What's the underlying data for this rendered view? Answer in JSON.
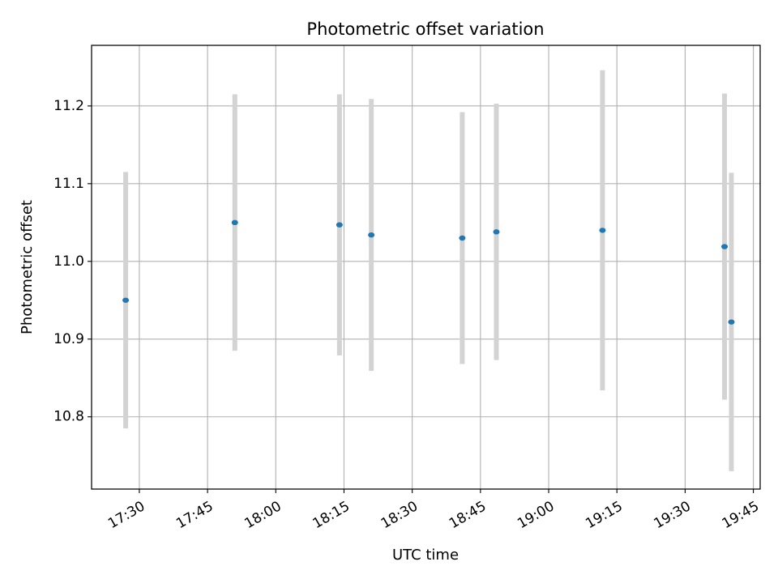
{
  "chart_data": {
    "type": "scatter",
    "title": "Photometric offset variation",
    "xlabel": "UTC time",
    "ylabel": "Photometric offset",
    "grid": true,
    "xlim": [
      "17:19:30",
      "19:46:30"
    ],
    "ylim": [
      10.707,
      11.278
    ],
    "x_ticks": [
      "17:30",
      "17:45",
      "18:00",
      "18:15",
      "18:30",
      "18:45",
      "19:00",
      "19:15",
      "19:30",
      "19:45"
    ],
    "y_ticks": [
      10.8,
      10.9,
      11.0,
      11.1,
      11.2
    ],
    "y_tick_labels": [
      "10.8",
      "10.9",
      "11.0",
      "11.1",
      "11.2"
    ],
    "marker_color": "#1f77b4",
    "errorbar_color": "#d3d3d3",
    "points": [
      {
        "x": "17:27:00",
        "y": 10.95,
        "err": 0.165
      },
      {
        "x": "17:51:00",
        "y": 11.05,
        "err": 0.165
      },
      {
        "x": "18:14:00",
        "y": 11.047,
        "err": 0.168
      },
      {
        "x": "18:21:00",
        "y": 11.034,
        "err": 0.175
      },
      {
        "x": "18:41:00",
        "y": 11.03,
        "err": 0.162
      },
      {
        "x": "18:48:30",
        "y": 11.038,
        "err": 0.165
      },
      {
        "x": "19:11:50",
        "y": 11.04,
        "err": 0.206
      },
      {
        "x": "19:38:40",
        "y": 11.019,
        "err": 0.197
      },
      {
        "x": "19:40:10",
        "y": 10.922,
        "err": 0.192
      }
    ]
  }
}
